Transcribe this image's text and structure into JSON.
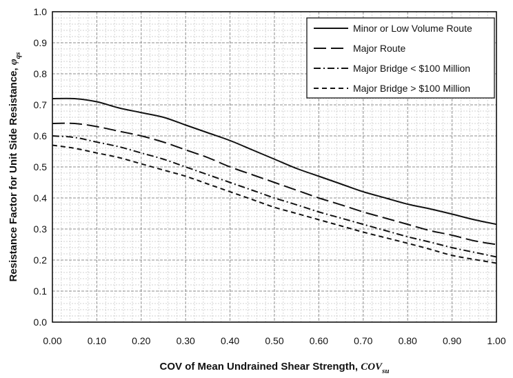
{
  "chart_data": {
    "type": "line",
    "title": "",
    "xlabel": "COV of Mean Undrained Shear Strength, ",
    "xlabel_symbol": "COV",
    "xlabel_subscript": "su",
    "ylabel": "Resistance Factor for Unit Side Resistance, ",
    "ylabel_symbol": "φ",
    "ylabel_subscript": "qs",
    "xlim": [
      0.0,
      1.0
    ],
    "ylim": [
      0.0,
      1.0
    ],
    "x_ticks": [
      "0.00",
      "0.10",
      "0.20",
      "0.30",
      "0.40",
      "0.50",
      "0.60",
      "0.70",
      "0.80",
      "0.90",
      "1.00"
    ],
    "y_ticks": [
      "0.0",
      "0.1",
      "0.2",
      "0.3",
      "0.4",
      "0.5",
      "0.6",
      "0.7",
      "0.8",
      "0.9",
      "1.0"
    ],
    "grid": "major and minor, dashed",
    "legend_position": "top-right",
    "x": [
      0.0,
      0.05,
      0.1,
      0.15,
      0.2,
      0.25,
      0.3,
      0.35,
      0.4,
      0.45,
      0.5,
      0.55,
      0.6,
      0.65,
      0.7,
      0.75,
      0.8,
      0.85,
      0.9,
      0.95,
      1.0
    ],
    "series": [
      {
        "name": "Minor or Low Volume Route",
        "dash": "solid",
        "values": [
          0.72,
          0.72,
          0.71,
          0.69,
          0.675,
          0.66,
          0.635,
          0.61,
          0.585,
          0.555,
          0.525,
          0.495,
          0.47,
          0.445,
          0.42,
          0.4,
          0.38,
          0.365,
          0.348,
          0.33,
          0.315
        ]
      },
      {
        "name": "Major Route",
        "dash": "long-dash",
        "values": [
          0.64,
          0.64,
          0.63,
          0.615,
          0.6,
          0.58,
          0.555,
          0.53,
          0.5,
          0.475,
          0.45,
          0.425,
          0.4,
          0.378,
          0.355,
          0.335,
          0.315,
          0.295,
          0.28,
          0.262,
          0.25
        ]
      },
      {
        "name": "Major Bridge < $100 Million",
        "dash": "dash-dot",
        "values": [
          0.6,
          0.595,
          0.58,
          0.565,
          0.545,
          0.525,
          0.5,
          0.475,
          0.45,
          0.425,
          0.4,
          0.378,
          0.355,
          0.335,
          0.315,
          0.295,
          0.275,
          0.258,
          0.24,
          0.225,
          0.21
        ]
      },
      {
        "name": "Major Bridge > $100 Million",
        "dash": "short-dash",
        "values": [
          0.57,
          0.56,
          0.545,
          0.53,
          0.51,
          0.49,
          0.47,
          0.445,
          0.42,
          0.395,
          0.37,
          0.35,
          0.33,
          0.31,
          0.29,
          0.272,
          0.254,
          0.235,
          0.215,
          0.202,
          0.19
        ]
      }
    ]
  }
}
